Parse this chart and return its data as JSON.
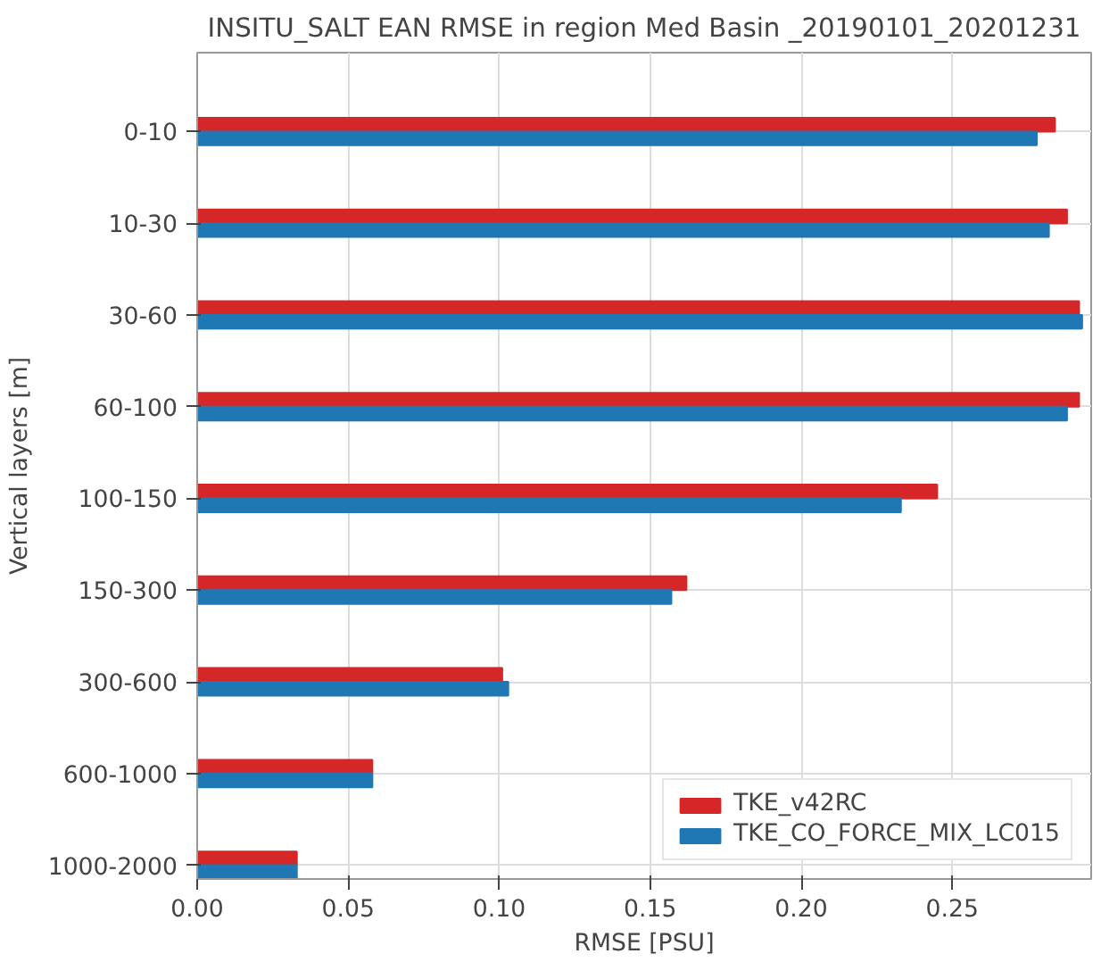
{
  "chart_data": {
    "type": "bar",
    "orientation": "horizontal",
    "title": "INSITU_SALT EAN RMSE in region Med Basin _20190101_20201231",
    "xlabel": "RMSE [PSU]",
    "ylabel": "Vertical layers [m]",
    "categories": [
      "0-10",
      "10-30",
      "30-60",
      "60-100",
      "100-150",
      "150-300",
      "300-600",
      "600-1000",
      "1000-2000"
    ],
    "series": [
      {
        "name": "TKE_v42RC",
        "color": "#d62728",
        "values": [
          0.284,
          0.288,
          0.292,
          0.292,
          0.245,
          0.162,
          0.101,
          0.058,
          0.033
        ]
      },
      {
        "name": "TKE_CO_FORCE_MIX_LC015",
        "color": "#1f77b4",
        "values": [
          0.278,
          0.282,
          0.293,
          0.288,
          0.233,
          0.157,
          0.103,
          0.058,
          0.033
        ]
      }
    ],
    "xlim": [
      0,
      0.296
    ],
    "xticks": [
      {
        "value": 0,
        "label": "0.00"
      },
      0.05,
      {
        "value": 0.1,
        "label": "0.10"
      },
      0.15,
      {
        "value": 0.2,
        "label": "0.20"
      },
      0.25
    ],
    "grid": true,
    "legend": "bottom right"
  }
}
